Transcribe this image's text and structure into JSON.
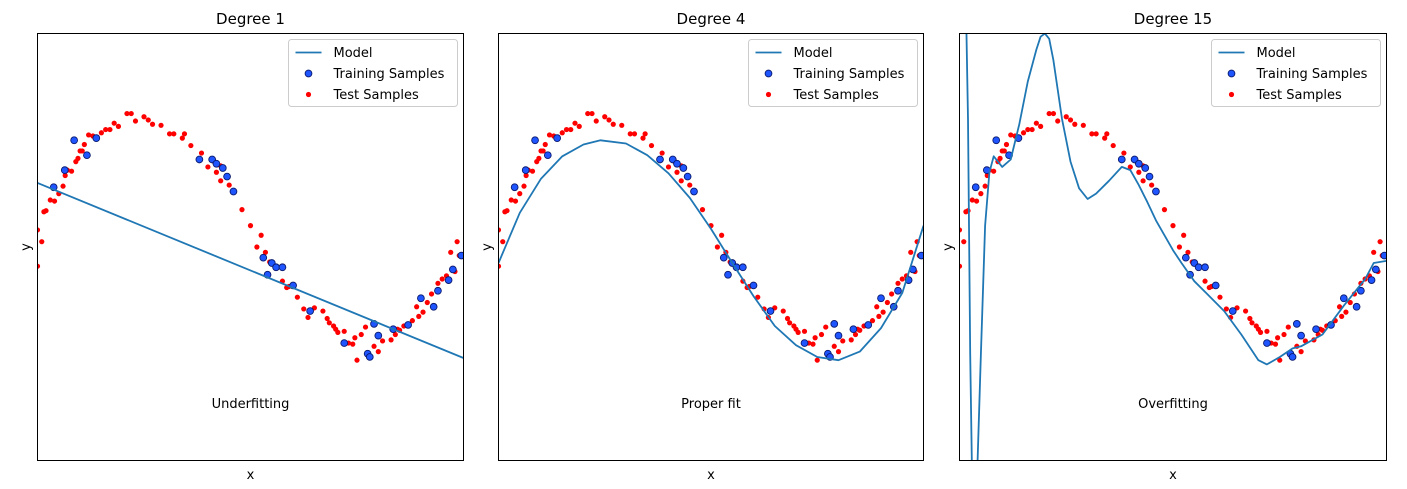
{
  "chart_data": [
    {
      "type": "scatter",
      "title": "Degree 1",
      "xlabel": "x",
      "ylabel": "y",
      "annotation": "Underfitting",
      "legend": {
        "position": "top-right",
        "entries": [
          "Model",
          "Training Samples",
          "Test Samples"
        ]
      },
      "xlim": [
        0,
        1
      ],
      "ylim": [
        -2,
        2
      ],
      "model_points": [
        [
          0,
          0.6
        ],
        [
          1,
          -1.04
        ]
      ]
    },
    {
      "type": "scatter",
      "title": "Degree 4",
      "xlabel": "x",
      "ylabel": "y",
      "annotation": "Proper fit",
      "legend": {
        "position": "top-right",
        "entries": [
          "Model",
          "Training Samples",
          "Test Samples"
        ]
      },
      "xlim": [
        0,
        1
      ],
      "ylim": [
        -2,
        2
      ],
      "model_points": [
        [
          0,
          -0.15
        ],
        [
          0.05,
          0.32
        ],
        [
          0.1,
          0.64
        ],
        [
          0.15,
          0.85
        ],
        [
          0.2,
          0.96
        ],
        [
          0.24,
          1.0
        ],
        [
          0.3,
          0.97
        ],
        [
          0.35,
          0.86
        ],
        [
          0.4,
          0.69
        ],
        [
          0.45,
          0.46
        ],
        [
          0.5,
          0.17
        ],
        [
          0.55,
          -0.15
        ],
        [
          0.6,
          -0.46
        ],
        [
          0.65,
          -0.74
        ],
        [
          0.7,
          -0.92
        ],
        [
          0.75,
          -1.03
        ],
        [
          0.8,
          -1.06
        ],
        [
          0.85,
          -0.98
        ],
        [
          0.9,
          -0.76
        ],
        [
          0.95,
          -0.43
        ],
        [
          1.0,
          0.2
        ]
      ]
    },
    {
      "type": "scatter",
      "title": "Degree 15",
      "xlabel": "x",
      "ylabel": "y",
      "annotation": "Overfitting",
      "legend": {
        "position": "top-right",
        "entries": [
          "Model",
          "Training Samples",
          "Test Samples"
        ]
      },
      "xlim": [
        0,
        1
      ],
      "ylim": [
        -2,
        2
      ],
      "model_points": [
        [
          0.015,
          2.3
        ],
        [
          0.02,
          1.2
        ],
        [
          0.025,
          -1.0
        ],
        [
          0.03,
          -2.3
        ],
        [
          0.04,
          -2.3
        ],
        [
          0.05,
          -1.0
        ],
        [
          0.06,
          0.2
        ],
        [
          0.07,
          0.7
        ],
        [
          0.08,
          0.85
        ],
        [
          0.1,
          0.75
        ],
        [
          0.12,
          0.82
        ],
        [
          0.14,
          1.15
        ],
        [
          0.16,
          1.55
        ],
        [
          0.18,
          1.85
        ],
        [
          0.19,
          1.97
        ],
        [
          0.2,
          2.0
        ],
        [
          0.21,
          1.95
        ],
        [
          0.22,
          1.75
        ],
        [
          0.24,
          1.2
        ],
        [
          0.26,
          0.8
        ],
        [
          0.28,
          0.55
        ],
        [
          0.3,
          0.45
        ],
        [
          0.32,
          0.5
        ],
        [
          0.35,
          0.62
        ],
        [
          0.38,
          0.75
        ],
        [
          0.4,
          0.72
        ],
        [
          0.42,
          0.58
        ],
        [
          0.44,
          0.42
        ],
        [
          0.46,
          0.25
        ],
        [
          0.5,
          -0.03
        ],
        [
          0.52,
          -0.15
        ],
        [
          0.55,
          -0.32
        ],
        [
          0.58,
          -0.44
        ],
        [
          0.62,
          -0.6
        ],
        [
          0.66,
          -0.82
        ],
        [
          0.7,
          -1.06
        ],
        [
          0.72,
          -1.1
        ],
        [
          0.75,
          -1.03
        ],
        [
          0.78,
          -0.95
        ],
        [
          0.8,
          -0.93
        ],
        [
          0.85,
          -0.82
        ],
        [
          0.9,
          -0.55
        ],
        [
          0.95,
          -0.3
        ],
        [
          0.97,
          -0.15
        ],
        [
          1.0,
          -0.13
        ]
      ]
    }
  ],
  "training_samples": [
    [
      0.086,
      1.0
    ],
    [
      0.116,
      0.86
    ],
    [
      0.138,
      1.02
    ],
    [
      0.064,
      0.72
    ],
    [
      0.038,
      0.56
    ],
    [
      0.38,
      0.82
    ],
    [
      0.41,
      0.82
    ],
    [
      0.42,
      0.78
    ],
    [
      0.445,
      0.66
    ],
    [
      0.435,
      0.74
    ],
    [
      0.46,
      0.52
    ],
    [
      0.53,
      -0.1
    ],
    [
      0.55,
      -0.15
    ],
    [
      0.54,
      -0.26
    ],
    [
      0.56,
      -0.19
    ],
    [
      0.575,
      -0.19
    ],
    [
      0.6,
      -0.36
    ],
    [
      0.64,
      -0.6
    ],
    [
      0.72,
      -0.9
    ],
    [
      0.775,
      -1.0
    ],
    [
      0.78,
      -1.03
    ],
    [
      0.79,
      -0.72
    ],
    [
      0.8,
      -0.83
    ],
    [
      0.835,
      -0.77
    ],
    [
      0.87,
      -0.73
    ],
    [
      0.9,
      -0.48
    ],
    [
      0.93,
      -0.56
    ],
    [
      0.94,
      -0.41
    ],
    [
      0.965,
      -0.31
    ],
    [
      0.975,
      -0.21
    ],
    [
      0.995,
      -0.08
    ]
  ],
  "test_samples": [
    [
      0.0,
      -0.18
    ],
    [
      0.0,
      0.16
    ],
    [
      0.01,
      0.05
    ],
    [
      0.015,
      0.33
    ],
    [
      0.02,
      0.34
    ],
    [
      0.03,
      0.44
    ],
    [
      0.04,
      0.43
    ],
    [
      0.05,
      0.5
    ],
    [
      0.06,
      0.57
    ],
    [
      0.065,
      0.67
    ],
    [
      0.07,
      0.72
    ],
    [
      0.08,
      0.71
    ],
    [
      0.09,
      0.8
    ],
    [
      0.095,
      0.83
    ],
    [
      0.1,
      0.9
    ],
    [
      0.105,
      0.9
    ],
    [
      0.11,
      0.96
    ],
    [
      0.12,
      1.05
    ],
    [
      0.13,
      1.04
    ],
    [
      0.14,
      1.03
    ],
    [
      0.15,
      1.07
    ],
    [
      0.16,
      1.1
    ],
    [
      0.17,
      1.1
    ],
    [
      0.18,
      1.16
    ],
    [
      0.19,
      1.13
    ],
    [
      0.21,
      1.25
    ],
    [
      0.22,
      1.25
    ],
    [
      0.23,
      1.18
    ],
    [
      0.25,
      1.22
    ],
    [
      0.26,
      1.19
    ],
    [
      0.27,
      1.15
    ],
    [
      0.29,
      1.14
    ],
    [
      0.31,
      1.06
    ],
    [
      0.32,
      1.06
    ],
    [
      0.34,
      1.02
    ],
    [
      0.345,
      1.06
    ],
    [
      0.36,
      0.95
    ],
    [
      0.385,
      0.88
    ],
    [
      0.4,
      0.75
    ],
    [
      0.415,
      0.8
    ],
    [
      0.42,
      0.7
    ],
    [
      0.43,
      0.76
    ],
    [
      0.43,
      0.62
    ],
    [
      0.45,
      0.58
    ],
    [
      0.48,
      0.35
    ],
    [
      0.5,
      0.2
    ],
    [
      0.515,
      0.0
    ],
    [
      0.525,
      0.11
    ],
    [
      0.535,
      -0.05
    ],
    [
      0.545,
      -0.14
    ],
    [
      0.56,
      -0.2
    ],
    [
      0.575,
      -0.32
    ],
    [
      0.585,
      -0.38
    ],
    [
      0.59,
      -0.37
    ],
    [
      0.61,
      -0.47
    ],
    [
      0.625,
      -0.58
    ],
    [
      0.635,
      -0.66
    ],
    [
      0.65,
      -0.57
    ],
    [
      0.67,
      -0.6
    ],
    [
      0.68,
      -0.67
    ],
    [
      0.685,
      -0.71
    ],
    [
      0.695,
      -0.74
    ],
    [
      0.7,
      -0.77
    ],
    [
      0.705,
      -0.8
    ],
    [
      0.72,
      -0.79
    ],
    [
      0.73,
      -0.9
    ],
    [
      0.74,
      -0.91
    ],
    [
      0.745,
      -0.85
    ],
    [
      0.75,
      -1.06
    ],
    [
      0.76,
      -0.82
    ],
    [
      0.77,
      -0.75
    ],
    [
      0.79,
      -0.93
    ],
    [
      0.8,
      -0.98
    ],
    [
      0.81,
      -0.88
    ],
    [
      0.83,
      -0.87
    ],
    [
      0.84,
      -0.82
    ],
    [
      0.845,
      -0.77
    ],
    [
      0.85,
      -0.78
    ],
    [
      0.86,
      -0.74
    ],
    [
      0.88,
      -0.69
    ],
    [
      0.89,
      -0.56
    ],
    [
      0.895,
      -0.65
    ],
    [
      0.905,
      -0.61
    ],
    [
      0.915,
      -0.52
    ],
    [
      0.925,
      -0.44
    ],
    [
      0.94,
      -0.34
    ],
    [
      0.95,
      -0.3
    ],
    [
      0.96,
      -0.27
    ],
    [
      0.97,
      -0.05
    ],
    [
      0.975,
      -0.2
    ],
    [
      0.98,
      -0.23
    ],
    [
      0.99,
      -0.08
    ],
    [
      0.985,
      0.05
    ]
  ],
  "colors": {
    "model": "#1f77b4",
    "training_fill": "#1f55ff",
    "training_edge": "#0a1a6e",
    "test": "#ff0000",
    "legend_border": "#cccccc"
  }
}
